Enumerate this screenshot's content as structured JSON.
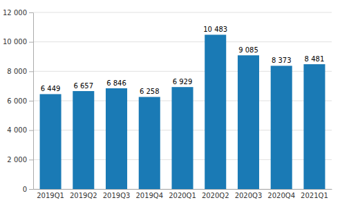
{
  "chart_data": {
    "type": "bar",
    "categories": [
      "2019Q1",
      "2019Q2",
      "2019Q3",
      "2019Q4",
      "2020Q1",
      "2020Q2",
      "2020Q3",
      "2020Q4",
      "2021Q1"
    ],
    "values": [
      6449,
      6657,
      6846,
      6258,
      6929,
      10483,
      9085,
      8373,
      8481
    ],
    "value_labels": [
      "6 449",
      "6 657",
      "6 846",
      "6 258",
      "6 929",
      "10 483",
      "9 085",
      "8 373",
      "8 481"
    ],
    "data_labels": true,
    "color": "#1a7ab5",
    "ylim": [
      0,
      12000
    ],
    "yticks": [
      0,
      {
        "value": 2000,
        "label": "2 000"
      },
      {
        "value": 4000,
        "label": "4 000"
      },
      {
        "value": 6000,
        "label": "6 000"
      },
      {
        "value": 8000,
        "label": "8 000"
      },
      {
        "value": 10000,
        "label": "10 000"
      },
      {
        "value": 12000,
        "label": "12 000"
      }
    ],
    "grid": true
  }
}
